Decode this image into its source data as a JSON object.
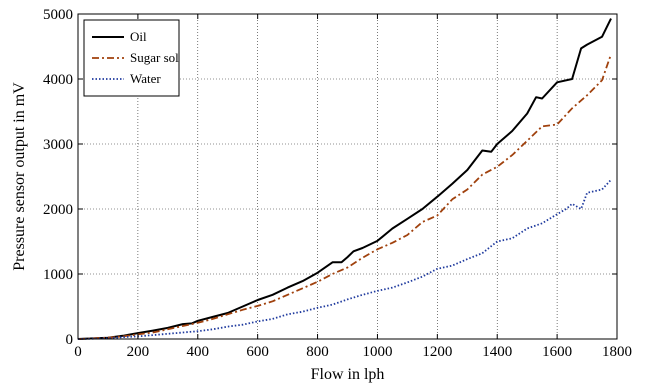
{
  "chart_data": {
    "type": "line",
    "title": "",
    "xlabel": "Flow in lph",
    "ylabel": "Pressure sensor output in mV",
    "xlim": [
      0,
      1800
    ],
    "ylim": [
      0,
      5000
    ],
    "xticks": [
      0,
      200,
      400,
      600,
      800,
      1000,
      1200,
      1400,
      1600,
      1800
    ],
    "yticks": [
      0,
      1000,
      2000,
      3000,
      4000,
      5000
    ],
    "grid": true,
    "legend_position": "top-left",
    "series": [
      {
        "name": "Oil",
        "color": "#000000",
        "style": "solid",
        "x": [
          0,
          50,
          100,
          150,
          200,
          250,
          300,
          350,
          380,
          400,
          450,
          500,
          550,
          600,
          650,
          700,
          750,
          800,
          850,
          880,
          900,
          920,
          950,
          1000,
          1050,
          1100,
          1150,
          1200,
          1250,
          1300,
          1350,
          1380,
          1400,
          1450,
          1500,
          1530,
          1550,
          1600,
          1650,
          1680,
          1700,
          1750,
          1780
        ],
        "y": [
          0,
          10,
          20,
          50,
          90,
          130,
          170,
          230,
          240,
          280,
          340,
          400,
          500,
          600,
          680,
          790,
          890,
          1020,
          1180,
          1180,
          1260,
          1350,
          1400,
          1510,
          1700,
          1850,
          2000,
          2190,
          2390,
          2600,
          2900,
          2880,
          3000,
          3200,
          3470,
          3720,
          3700,
          3950,
          4000,
          4470,
          4530,
          4650,
          4930
        ]
      },
      {
        "name": "Sugar sol",
        "color": "#a0410d",
        "style": "dash-dot",
        "x": [
          0,
          50,
          100,
          150,
          200,
          250,
          300,
          350,
          400,
          450,
          500,
          550,
          600,
          650,
          700,
          750,
          800,
          850,
          900,
          950,
          1000,
          1050,
          1100,
          1150,
          1200,
          1250,
          1300,
          1350,
          1400,
          1450,
          1500,
          1550,
          1600,
          1650,
          1700,
          1750,
          1780
        ],
        "y": [
          0,
          10,
          20,
          40,
          70,
          100,
          150,
          200,
          250,
          310,
          380,
          450,
          510,
          580,
          680,
          780,
          880,
          1000,
          1100,
          1250,
          1380,
          1480,
          1600,
          1800,
          1900,
          2150,
          2300,
          2530,
          2650,
          2830,
          3050,
          3270,
          3300,
          3550,
          3750,
          3980,
          4380
        ]
      },
      {
        "name": "Water",
        "color": "#1f3a9e",
        "style": "dotted",
        "x": [
          0,
          50,
          100,
          150,
          200,
          250,
          300,
          350,
          400,
          450,
          500,
          550,
          600,
          650,
          700,
          750,
          800,
          850,
          900,
          950,
          1000,
          1050,
          1100,
          1150,
          1200,
          1250,
          1300,
          1350,
          1400,
          1450,
          1500,
          1550,
          1600,
          1630,
          1650,
          1680,
          1700,
          1750,
          1780
        ],
        "y": [
          0,
          5,
          10,
          30,
          40,
          60,
          80,
          100,
          120,
          150,
          190,
          220,
          270,
          310,
          380,
          420,
          480,
          530,
          610,
          680,
          740,
          790,
          870,
          960,
          1080,
          1130,
          1230,
          1320,
          1500,
          1550,
          1700,
          1780,
          1920,
          2000,
          2080,
          2000,
          2250,
          2300,
          2450
        ]
      }
    ]
  }
}
